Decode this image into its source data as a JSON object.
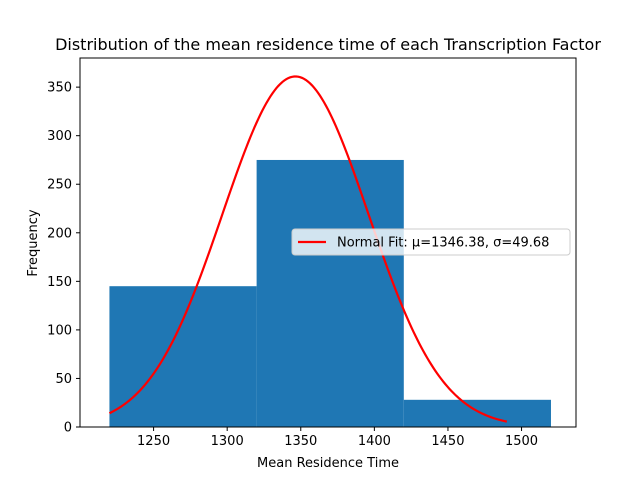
{
  "chart_data": {
    "type": "bar",
    "title": "Distribution of the mean residence time of each Transcription Factor",
    "xlabel": "Mean Residence Time",
    "ylabel": "Frequency",
    "xlim": [
      1200,
      1537
    ],
    "ylim": [
      0,
      380
    ],
    "xticks": [
      1250,
      1300,
      1350,
      1400,
      1450,
      1500
    ],
    "yticks": [
      0,
      50,
      100,
      150,
      200,
      250,
      300,
      350
    ],
    "bins": [
      {
        "start": 1220,
        "end": 1320,
        "value": 145
      },
      {
        "start": 1320,
        "end": 1420,
        "value": 275
      },
      {
        "start": 1420,
        "end": 1520,
        "value": 28
      }
    ],
    "bar_color": "#1f77b4",
    "fit_curve": {
      "name": "Normal Fit: μ=1346.38, σ=49.68",
      "mu": 1346.38,
      "sigma": 49.68,
      "peak": 361,
      "x_range": [
        1220,
        1490
      ],
      "color": "#ff0000"
    },
    "legend_position": "center-right",
    "grid": false
  }
}
